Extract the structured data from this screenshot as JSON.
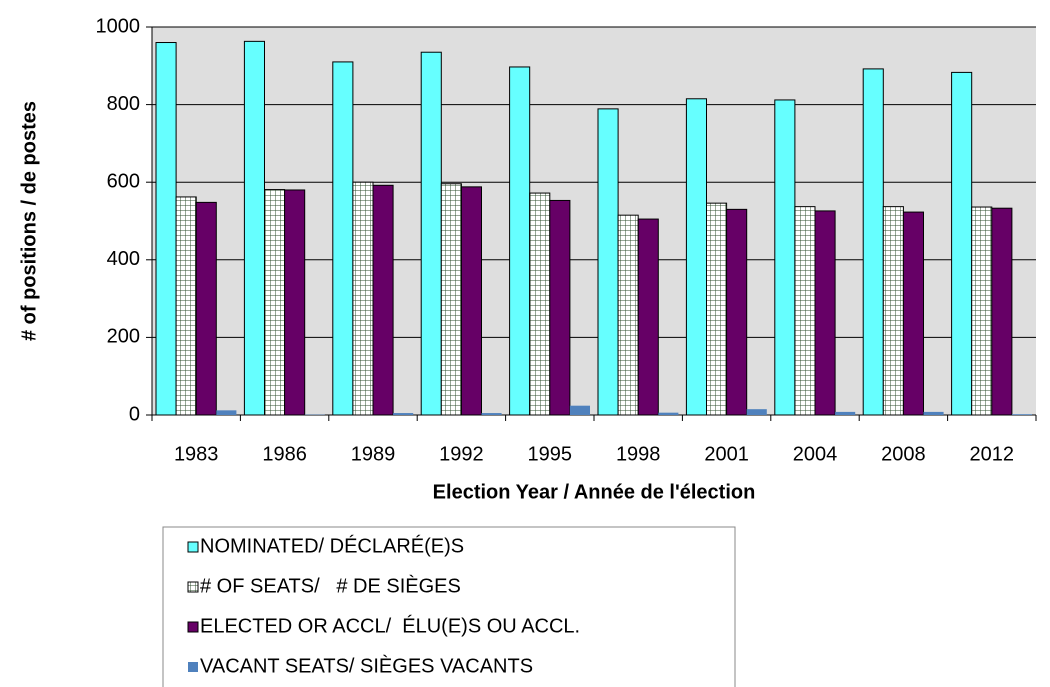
{
  "chart_data": {
    "type": "bar",
    "categories": [
      "1983",
      "1986",
      "1989",
      "1992",
      "1995",
      "1998",
      "2001",
      "2004",
      "2008",
      "2012"
    ],
    "series": [
      {
        "name": "NOMINATED/ DÉCLARÉ(E)S",
        "color": "#66ffff",
        "values": [
          960,
          963,
          910,
          935,
          897,
          789,
          815,
          812,
          892,
          883
        ]
      },
      {
        "name": "# OF SEATS/   # DE SIÈGES",
        "color": "#ffffff",
        "values": [
          562,
          581,
          600,
          596,
          572,
          515,
          546,
          537,
          537,
          536
        ]
      },
      {
        "name": "ELECTED OR ACCL/  ÉLU(E)S OU ACCL.",
        "color": "#660066",
        "values": [
          548,
          580,
          592,
          588,
          553,
          505,
          530,
          526,
          523,
          533
        ]
      },
      {
        "name": "VACANT SEATS/ SIÈGES VACANTS",
        "color": "#4f81bd",
        "values": [
          12,
          1,
          5,
          5,
          24,
          6,
          15,
          8,
          8,
          2
        ]
      }
    ],
    "xlabel": "Election Year / Année de l'élection",
    "ylabel": "# of positions / de postes",
    "ylim": [
      0,
      1000
    ],
    "yticks": [
      0,
      200,
      400,
      600,
      800,
      1000
    ],
    "grid": true,
    "legend": "bottom"
  }
}
